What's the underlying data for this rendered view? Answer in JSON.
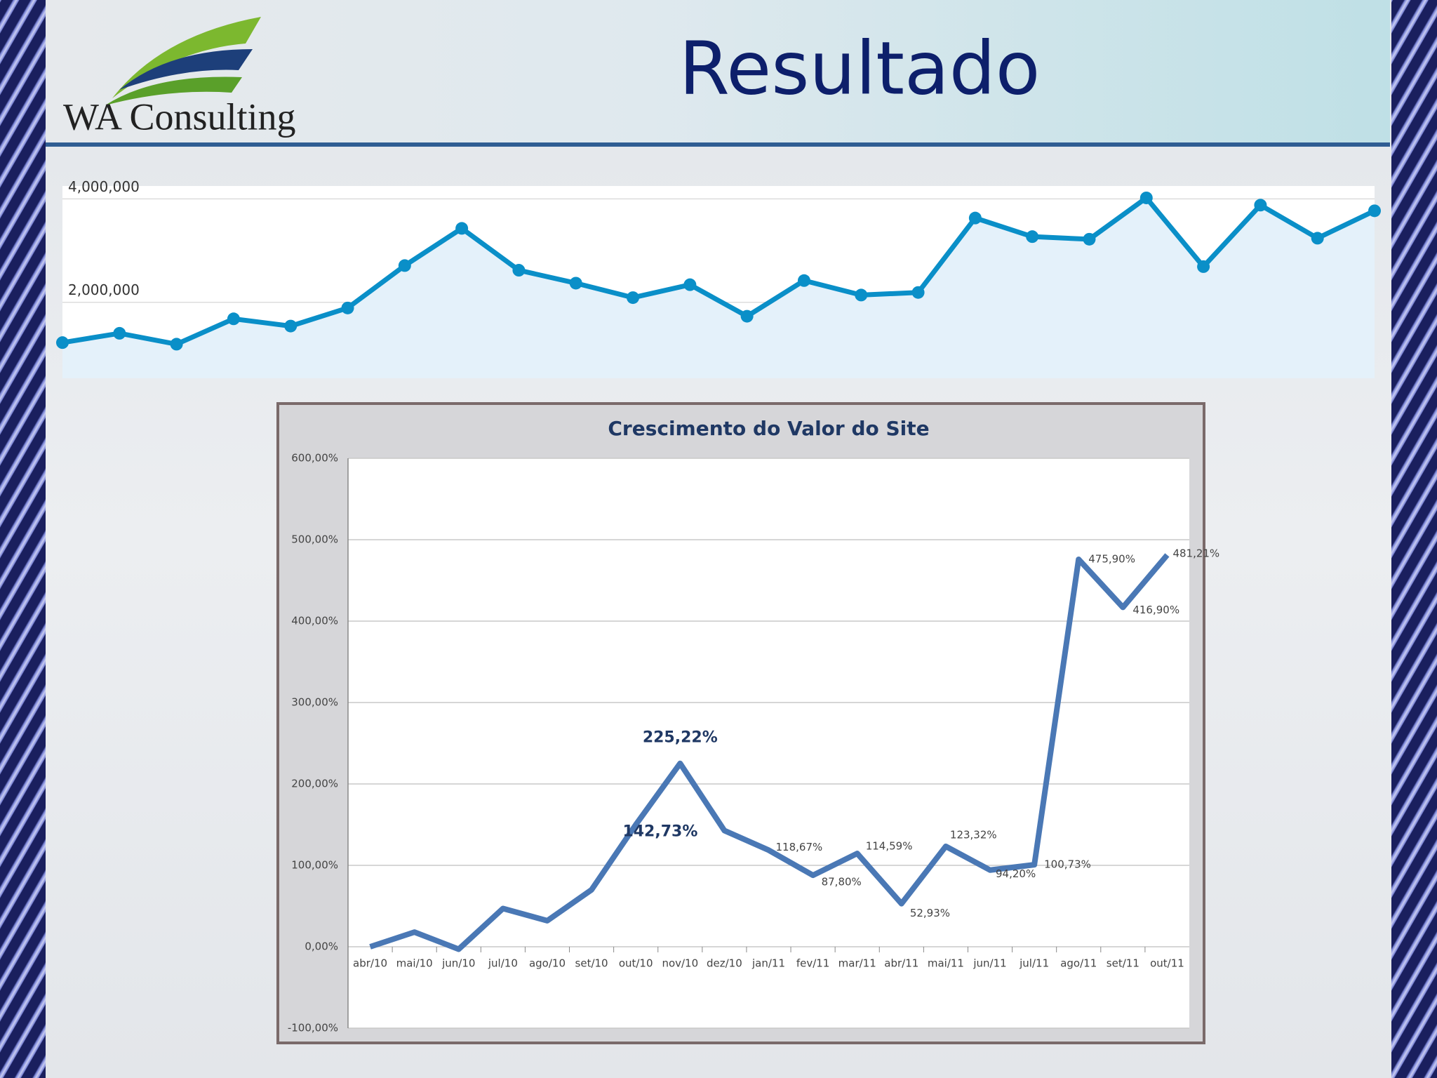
{
  "slide": {
    "title": "Resultado",
    "logo": "WA Consulting"
  },
  "chart_data": [
    {
      "type": "line",
      "color": "#0a8fc8",
      "area_color": "#e4f1fa",
      "categories": [
        null,
        null,
        null,
        null,
        null,
        null,
        null,
        null,
        null,
        null,
        null,
        null,
        null,
        null,
        null,
        null,
        null,
        null,
        null,
        null,
        null,
        null,
        null,
        null
      ],
      "values": [
        1220000,
        1400000,
        1190000,
        1680000,
        1540000,
        1890000,
        2710000,
        3430000,
        2620000,
        2370000,
        2090000,
        2340000,
        1730000,
        2420000,
        2140000,
        2190000,
        3630000,
        3270000,
        3220000,
        4020000,
        2690000,
        3880000,
        3240000,
        3770000
      ],
      "ylim": [
        530000,
        4250000
      ],
      "yticks": [
        {
          "value": 2000000,
          "label": "2,000,000"
        },
        {
          "value": 4000000,
          "label": "4,000,000"
        }
      ],
      "grid": true
    },
    {
      "type": "line",
      "title": "Crescimento do Valor do Site",
      "color": "#4a78b5",
      "categories": [
        "abr/10",
        "mai/10",
        "jun/10",
        "jul/10",
        "ago/10",
        "set/10",
        "out/10",
        "nov/10",
        "dez/10",
        "jan/11",
        "fev/11",
        "mar/11",
        "abr/11",
        "mai/11",
        "jun/11",
        "jul/11",
        "ago/11",
        "set/11",
        "out/11"
      ],
      "values": [
        0,
        18,
        -3,
        47,
        32,
        70,
        150,
        225.22,
        142.73,
        118.67,
        87.8,
        114.59,
        52.93,
        123.32,
        94.2,
        100.73,
        475.9,
        416.9,
        481.21
      ],
      "value_labels": [
        null,
        null,
        null,
        null,
        null,
        null,
        null,
        "225,22%",
        "142,73%",
        "118,67%",
        "87,80%",
        "114,59%",
        "52,93%",
        "123,32%",
        "94,20%",
        "100,73%",
        "475,90%",
        "416,90%",
        "481,21%"
      ],
      "ylim": [
        -100,
        600
      ],
      "yticks": [
        {
          "value": -100,
          "label": "-100,00%"
        },
        {
          "value": 0,
          "label": "0,00%"
        },
        {
          "value": 100,
          "label": "100,00%"
        },
        {
          "value": 200,
          "label": "200,00%"
        },
        {
          "value": 300,
          "label": "300,00%"
        },
        {
          "value": 400,
          "label": "400,00%"
        },
        {
          "value": 500,
          "label": "500,00%"
        },
        {
          "value": 600,
          "label": "600,00%"
        }
      ],
      "grid": true
    }
  ]
}
